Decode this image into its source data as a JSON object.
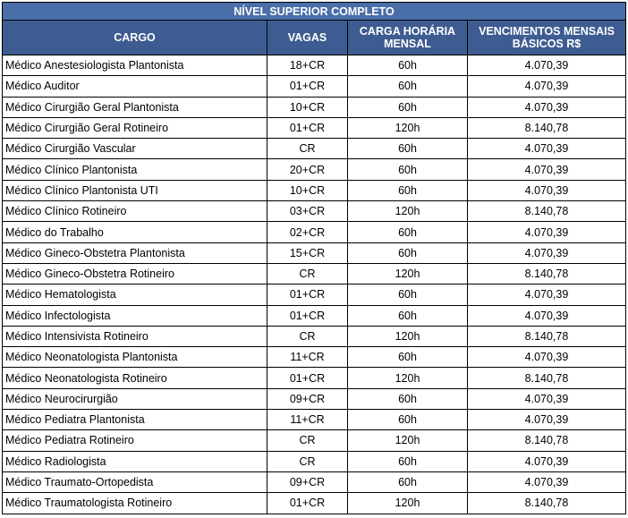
{
  "title": "NÍVEL SUPERIOR COMPLETO",
  "headers": {
    "cargo": "CARGO",
    "vagas": "VAGAS",
    "carga_line1": "CARGA HORÁRIA",
    "carga_line2": "MENSAL",
    "venc_line1": "VENCIMENTOS MENSAIS",
    "venc_line2": "BÁSICOS R$"
  },
  "colors": {
    "header_bg": "#3e5c91",
    "title_bg": "#4a6ea8",
    "header_text": "#ffffff"
  },
  "rows": [
    {
      "cargo": "Médico Anestesiologista Plantonista",
      "vagas": "18+CR",
      "carga": "60h",
      "venc": "4.070,39"
    },
    {
      "cargo": "Médico Auditor",
      "vagas": "01+CR",
      "carga": "60h",
      "venc": "4.070,39"
    },
    {
      "cargo": "Médico Cirurgião Geral Plantonista",
      "vagas": "10+CR",
      "carga": "60h",
      "venc": "4.070,39"
    },
    {
      "cargo": "Médico Cirurgião Geral Rotineiro",
      "vagas": "01+CR",
      "carga": "120h",
      "venc": "8.140,78"
    },
    {
      "cargo": "Médico Cirurgião Vascular",
      "vagas": "CR",
      "carga": "60h",
      "venc": "4.070,39"
    },
    {
      "cargo": "Médico Clínico Plantonista",
      "vagas": "20+CR",
      "carga": "60h",
      "venc": "4.070,39"
    },
    {
      "cargo": "Médico Clínico Plantonista UTI",
      "vagas": "10+CR",
      "carga": "60h",
      "venc": "4.070,39"
    },
    {
      "cargo": "Médico Clínico Rotineiro",
      "vagas": "03+CR",
      "carga": "120h",
      "venc": "8.140,78"
    },
    {
      "cargo": "Médico do Trabalho",
      "vagas": "02+CR",
      "carga": "60h",
      "venc": "4.070,39"
    },
    {
      "cargo": "Médico Gineco-Obstetra Plantonista",
      "vagas": "15+CR",
      "carga": "60h",
      "venc": "4.070,39"
    },
    {
      "cargo": "Médico Gineco-Obstetra Rotineiro",
      "vagas": "CR",
      "carga": "120h",
      "venc": "8.140,78"
    },
    {
      "cargo": "Médico Hematologista",
      "vagas": "01+CR",
      "carga": "60h",
      "venc": "4.070,39"
    },
    {
      "cargo": "Médico Infectologista",
      "vagas": "01+CR",
      "carga": "60h",
      "venc": "4.070,39"
    },
    {
      "cargo": "Médico Intensivista Rotineiro",
      "vagas": "CR",
      "carga": "120h",
      "venc": "8.140,78"
    },
    {
      "cargo": "Médico Neonatologista Plantonista",
      "vagas": "11+CR",
      "carga": "60h",
      "venc": "4.070,39"
    },
    {
      "cargo": "Médico Neonatologista Rotineiro",
      "vagas": "01+CR",
      "carga": "120h",
      "venc": "8.140,78"
    },
    {
      "cargo": "Médico Neurocirurgião",
      "vagas": "09+CR",
      "carga": "60h",
      "venc": "4.070,39"
    },
    {
      "cargo": "Médico Pediatra Plantonista",
      "vagas": "11+CR",
      "carga": "60h",
      "venc": "4.070,39"
    },
    {
      "cargo": "Médico Pediatra Rotineiro",
      "vagas": "CR",
      "carga": "120h",
      "venc": "8.140,78"
    },
    {
      "cargo": "Médico Radiologista",
      "vagas": "CR",
      "carga": "60h",
      "venc": "4.070,39"
    },
    {
      "cargo": "Médico Traumato-Ortopedista",
      "vagas": "09+CR",
      "carga": "60h",
      "venc": "4.070,39"
    },
    {
      "cargo": "Médico Traumatologista Rotineiro",
      "vagas": "01+CR",
      "carga": "120h",
      "venc": "8.140,78"
    }
  ]
}
